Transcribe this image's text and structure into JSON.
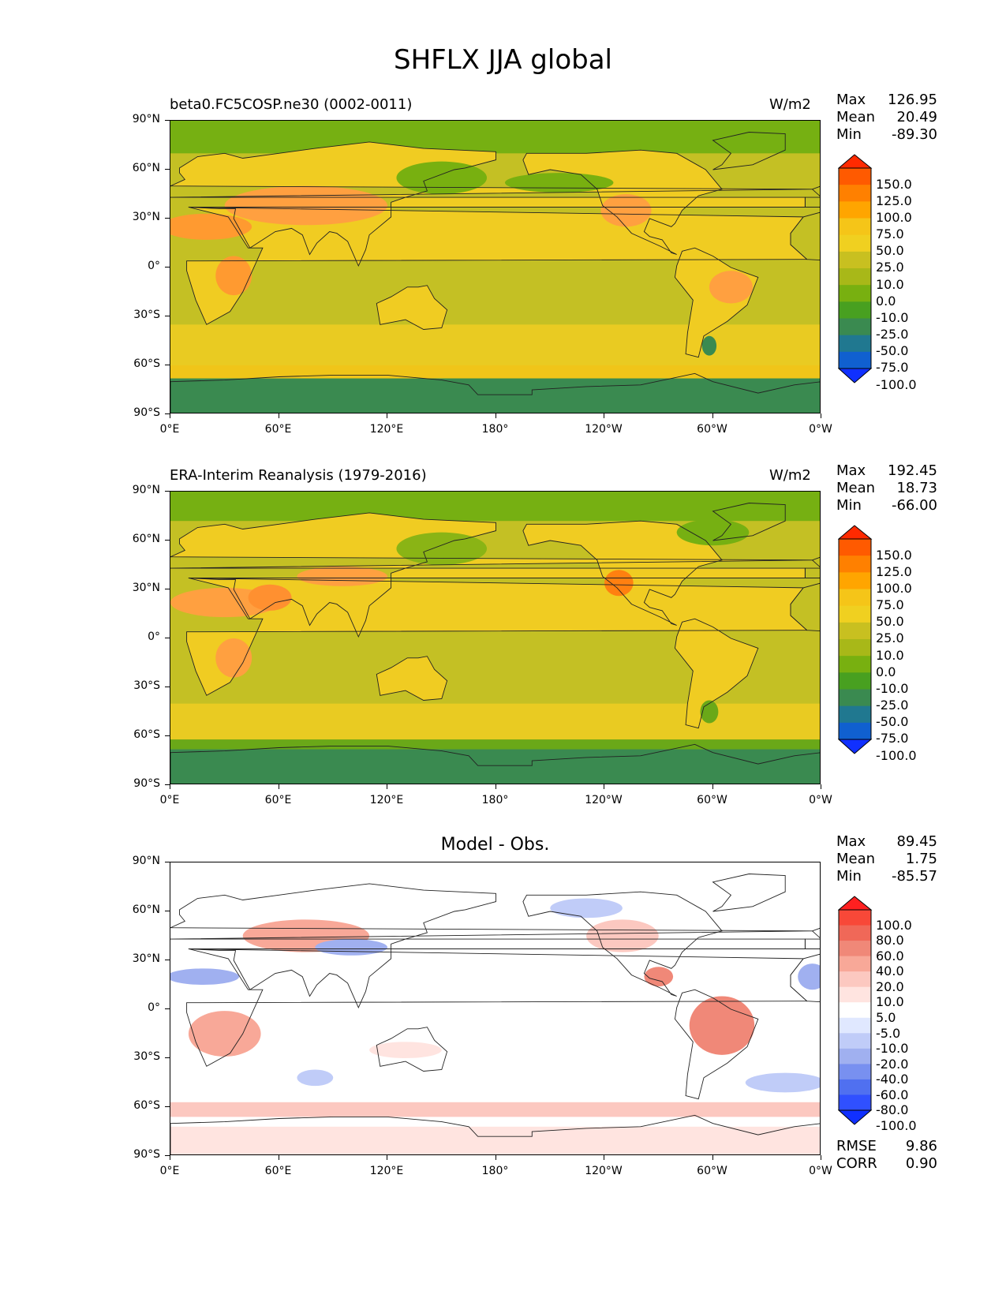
{
  "title": "SHFLX JJA global",
  "panels": [
    {
      "id": "model",
      "subtitle_left": "beta0.FC5COSP.ne30 (0002-0011)",
      "subtitle_center": "",
      "units": "W/m2",
      "stats": [
        {
          "label": "Max",
          "value": "126.95"
        },
        {
          "label": "Mean",
          "value": "20.49"
        },
        {
          "label": "Min",
          "value": "-89.30"
        }
      ],
      "colorbar": {
        "levels": [
          "150.0",
          "125.0",
          "100.0",
          "75.0",
          "50.0",
          "25.0",
          "10.0",
          "0.0",
          "-10.0",
          "-25.0",
          "-50.0",
          "-75.0",
          "-100.0"
        ],
        "colors": [
          "#ff2a00",
          "#ff5a00",
          "#ff8000",
          "#ffa500",
          "#f5c518",
          "#f0d020",
          "#c8c020",
          "#a8b818",
          "#78b010",
          "#48a020",
          "#3a8a50",
          "#207890",
          "#1060d0",
          "#1030ff"
        ]
      }
    },
    {
      "id": "obs",
      "subtitle_left": "ERA-Interim Reanalysis (1979-2016)",
      "subtitle_center": "",
      "units": "W/m2",
      "stats": [
        {
          "label": "Max",
          "value": "192.45"
        },
        {
          "label": "Mean",
          "value": "18.73"
        },
        {
          "label": "Min",
          "value": "-66.00"
        }
      ],
      "colorbar": {
        "levels": [
          "150.0",
          "125.0",
          "100.0",
          "75.0",
          "50.0",
          "25.0",
          "10.0",
          "0.0",
          "-10.0",
          "-25.0",
          "-50.0",
          "-75.0",
          "-100.0"
        ],
        "colors": [
          "#ff2a00",
          "#ff5a00",
          "#ff8000",
          "#ffa500",
          "#f5c518",
          "#f0d020",
          "#c8c020",
          "#a8b818",
          "#78b010",
          "#48a020",
          "#3a8a50",
          "#207890",
          "#1060d0",
          "#1030ff"
        ]
      }
    },
    {
      "id": "diff",
      "subtitle_left": "",
      "subtitle_center": "Model - Obs.",
      "units": "",
      "stats": [
        {
          "label": "Max",
          "value": "89.45"
        },
        {
          "label": "Mean",
          "value": "1.75"
        },
        {
          "label": "Min",
          "value": "-85.57"
        }
      ],
      "extra_stats": [
        {
          "label": "RMSE",
          "value": "9.86"
        },
        {
          "label": "CORR",
          "value": "0.90"
        }
      ],
      "colorbar": {
        "levels": [
          "100.0",
          "80.0",
          "60.0",
          "40.0",
          "20.0",
          "10.0",
          "5.0",
          "-5.0",
          "-10.0",
          "-20.0",
          "-40.0",
          "-60.0",
          "-80.0",
          "-100.0"
        ],
        "colors": [
          "#ff2020",
          "#f84838",
          "#f06858",
          "#f08878",
          "#f8a898",
          "#fcc8c0",
          "#ffe4e0",
          "#ffffff",
          "#e0e8ff",
          "#c0ccf8",
          "#a0b0f0",
          "#7890f0",
          "#5070f0",
          "#3050ff",
          "#1030ff"
        ]
      }
    }
  ],
  "axes": {
    "yticks": [
      "90°N",
      "60°N",
      "30°N",
      "0°",
      "30°S",
      "60°S",
      "90°S"
    ],
    "xticks": [
      "0°E",
      "60°E",
      "120°E",
      "180°",
      "120°W",
      "60°W",
      "0°W"
    ]
  },
  "chart_data": [
    {
      "type": "heatmap",
      "title": "SHFLX JJA global",
      "subtitle": "beta0.FC5COSP.ne30 (0002-0011)",
      "units": "W/m2",
      "xlim": [
        0,
        360
      ],
      "ylim": [
        -90,
        90
      ],
      "max": 126.95,
      "mean": 20.49,
      "min": -89.3
    },
    {
      "type": "heatmap",
      "title": "SHFLX JJA global",
      "subtitle": "ERA-Interim Reanalysis (1979-2016)",
      "units": "W/m2",
      "xlim": [
        0,
        360
      ],
      "ylim": [
        -90,
        90
      ],
      "max": 192.45,
      "mean": 18.73,
      "min": -66.0
    },
    {
      "type": "heatmap",
      "title": "Model - Obs.",
      "xlim": [
        0,
        360
      ],
      "ylim": [
        -90,
        90
      ],
      "max": 89.45,
      "mean": 1.75,
      "min": -85.57,
      "rmse": 9.86,
      "corr": 0.9
    }
  ]
}
